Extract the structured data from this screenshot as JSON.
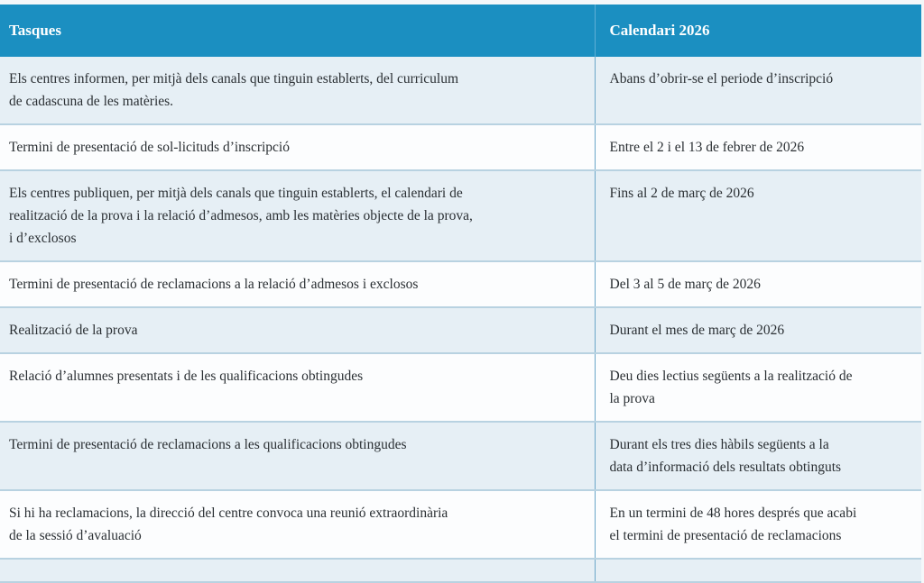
{
  "table": {
    "headers": [
      "Tasques",
      "Calendari 2026"
    ],
    "rows": [
      [
        "Els centres informen, per mitjà dels canals que tinguin establerts, del curriculum\nde cadascuna de les matèries.",
        "Abans d’obrir-se el periode d’inscripció"
      ],
      [
        "Termini de presentació de sol-licituds d’inscripció",
        "Entre el 2 i el 13 de febrer de 2026"
      ],
      [
        "Els centres publiquen, per mitjà dels canals que tinguin establerts, el calendari de\nrealització de la prova i la relació d’admesos, amb les matèries objecte de la prova,\ni d’exclosos",
        "Fins al 2 de març de 2026"
      ],
      [
        "Termini de presentació de reclamacions a la relació d’admesos i exclosos",
        "Del 3 al 5 de març de 2026"
      ],
      [
        "Realització de la prova",
        "Durant el mes de març de 2026"
      ],
      [
        "Relació d’alumnes presentats i de les qualificacions obtingudes",
        "Deu dies lectius següents a la realització de\nla prova"
      ],
      [
        "Termini de presentació de reclamacions a les qualificacions obtingudes",
        "Durant els tres dies hàbils següents a la\ndata d’informació dels resultats obtinguts"
      ],
      [
        "Si hi ha reclamacions, la direcció del centre convoca una reunió extraordinària\nde la sessió d’avaluació",
        "En un termini de 48 hores després que acabi\nel termini de presentació de reclamacions"
      ],
      [
        "",
        ""
      ]
    ]
  },
  "colors": {
    "header_bg": "#1b8fc1",
    "row_alt": "#e6eff5",
    "row_white": "#fcfdfe"
  }
}
